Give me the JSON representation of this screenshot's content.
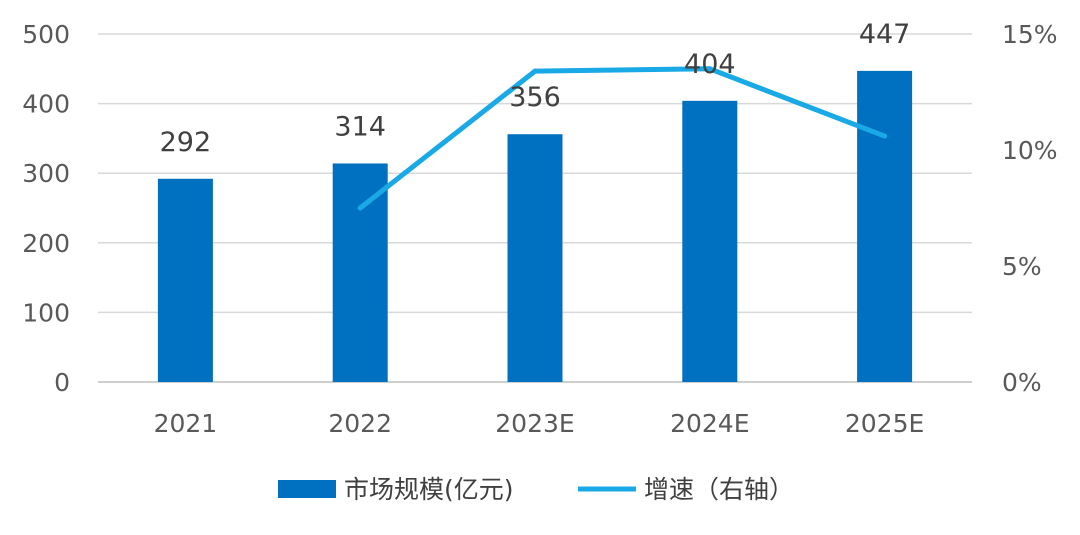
{
  "chart_data": {
    "type": "bar",
    "categories": [
      "2021",
      "2022",
      "2023E",
      "2024E",
      "2025E"
    ],
    "series": [
      {
        "name": "市场规模(亿元)",
        "type": "bar",
        "axis": "left",
        "values": [
          292,
          314,
          356,
          404,
          447
        ],
        "color": "#0070C0"
      },
      {
        "name": "增速（右轴）",
        "type": "line",
        "axis": "right",
        "values": [
          null,
          7.5,
          13.4,
          13.5,
          10.6
        ],
        "color": "#19A9E6"
      }
    ],
    "y_left": {
      "lim": [
        0,
        500
      ],
      "ticks": [
        "0",
        "100",
        "200",
        "300",
        "400",
        "500"
      ]
    },
    "y_right": {
      "lim": [
        0,
        15
      ],
      "ticks": [
        "0%",
        "5%",
        "10%",
        "15%"
      ]
    },
    "grid": true,
    "legend": "bottom"
  }
}
